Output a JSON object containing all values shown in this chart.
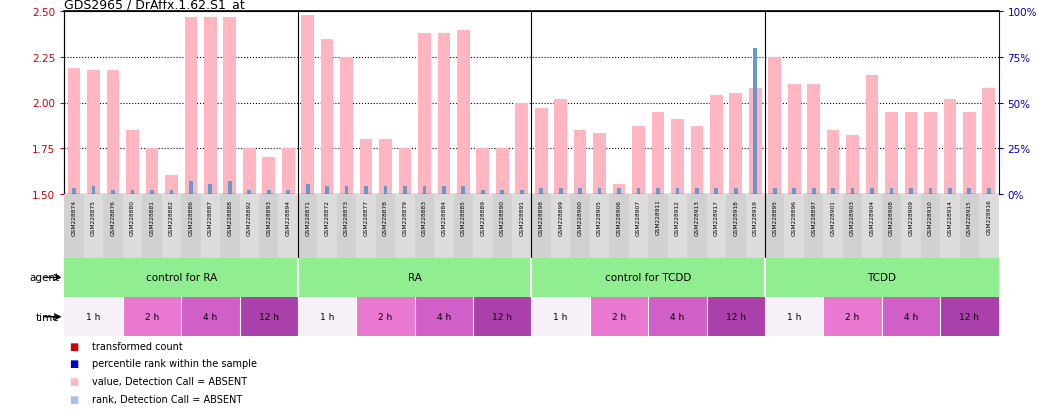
{
  "title": "GDS2965 / DrAffx.1.62.S1_at",
  "samples": [
    "GSM228874",
    "GSM228875",
    "GSM228876",
    "GSM228880",
    "GSM228881",
    "GSM228882",
    "GSM228886",
    "GSM228887",
    "GSM228888",
    "GSM228892",
    "GSM228893",
    "GSM228894",
    "GSM228871",
    "GSM228872",
    "GSM228873",
    "GSM228877",
    "GSM228878",
    "GSM228879",
    "GSM228883",
    "GSM228884",
    "GSM228885",
    "GSM228889",
    "GSM228890",
    "GSM228891",
    "GSM228898",
    "GSM228899",
    "GSM228900",
    "GSM228905",
    "GSM228906",
    "GSM228907",
    "GSM228911",
    "GSM228912",
    "GSM228913",
    "GSM228917",
    "GSM228918",
    "GSM228919",
    "GSM228895",
    "GSM228896",
    "GSM228897",
    "GSM228901",
    "GSM228903",
    "GSM228904",
    "GSM228908",
    "GSM228909",
    "GSM228910",
    "GSM228914",
    "GSM228915",
    "GSM228916"
  ],
  "values": [
    2.19,
    2.18,
    2.18,
    1.85,
    1.75,
    1.6,
    2.47,
    2.47,
    2.47,
    1.75,
    1.7,
    1.75,
    2.48,
    2.35,
    2.25,
    1.8,
    1.8,
    1.75,
    2.38,
    2.38,
    2.4,
    1.75,
    1.75,
    2.0,
    1.97,
    2.02,
    1.85,
    1.83,
    1.55,
    1.87,
    1.95,
    1.91,
    1.87,
    2.04,
    2.05,
    2.08,
    2.25,
    2.1,
    2.1,
    1.85,
    1.82,
    2.15,
    1.95,
    1.95,
    1.95,
    2.02,
    1.95,
    2.08
  ],
  "ranks": [
    3,
    4,
    2,
    2,
    2,
    2,
    7,
    5,
    7,
    2,
    2,
    2,
    5,
    4,
    4,
    4,
    4,
    4,
    4,
    4,
    4,
    2,
    2,
    2,
    3,
    3,
    3,
    3,
    3,
    3,
    3,
    3,
    3,
    3,
    3,
    80,
    3,
    3,
    3,
    3,
    3,
    3,
    3,
    3,
    3,
    3,
    3,
    3
  ],
  "ylim_left": [
    1.5,
    2.5
  ],
  "ylim_right": [
    0,
    100
  ],
  "yticks_left": [
    1.5,
    1.75,
    2.0,
    2.25,
    2.5
  ],
  "yticks_right": [
    0,
    25,
    50,
    75,
    100
  ],
  "agent_groups": [
    {
      "label": "control for RA",
      "start": 0,
      "end": 12,
      "color": "#90EE90"
    },
    {
      "label": "RA",
      "start": 12,
      "end": 24,
      "color": "#90EE90"
    },
    {
      "label": "control for TCDD",
      "start": 24,
      "end": 36,
      "color": "#90EE90"
    },
    {
      "label": "TCDD",
      "start": 36,
      "end": 48,
      "color": "#90EE90"
    }
  ],
  "time_groups": [
    {
      "label": "1 h",
      "start": 0,
      "end": 3
    },
    {
      "label": "2 h",
      "start": 3,
      "end": 6
    },
    {
      "label": "4 h",
      "start": 6,
      "end": 9
    },
    {
      "label": "12 h",
      "start": 9,
      "end": 12
    },
    {
      "label": "1 h",
      "start": 12,
      "end": 15
    },
    {
      "label": "2 h",
      "start": 15,
      "end": 18
    },
    {
      "label": "4 h",
      "start": 18,
      "end": 21
    },
    {
      "label": "12 h",
      "start": 21,
      "end": 24
    },
    {
      "label": "1 h",
      "start": 24,
      "end": 27
    },
    {
      "label": "2 h",
      "start": 27,
      "end": 30
    },
    {
      "label": "4 h",
      "start": 30,
      "end": 33
    },
    {
      "label": "12 h",
      "start": 33,
      "end": 36
    },
    {
      "label": "1 h",
      "start": 36,
      "end": 39
    },
    {
      "label": "2 h",
      "start": 39,
      "end": 42
    },
    {
      "label": "4 h",
      "start": 42,
      "end": 45
    },
    {
      "label": "12 h",
      "start": 45,
      "end": 48
    }
  ],
  "time_colors": {
    "1 h": "#F8F0F8",
    "2 h": "#E878D0",
    "4 h": "#D060C8",
    "12 h": "#AA40AA"
  },
  "bar_color": "#FFB6C1",
  "rank_color": "#6699CC",
  "bg_color": "#D8D8D8",
  "left_axis_color": "#CC0000",
  "right_axis_color": "#0000BB",
  "legend_items": [
    {
      "color": "#CC0000",
      "label": "transformed count"
    },
    {
      "color": "#0000CC",
      "label": "percentile rank within the sample"
    },
    {
      "color": "#FFB6C1",
      "label": "value, Detection Call = ABSENT"
    },
    {
      "color": "#AABBEE",
      "label": "rank, Detection Call = ABSENT"
    }
  ]
}
